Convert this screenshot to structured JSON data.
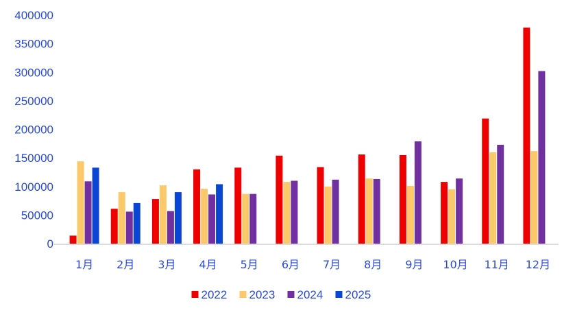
{
  "chart_data": {
    "type": "bar",
    "title": "",
    "xlabel": "",
    "ylabel": "",
    "ylim": [
      0,
      400000
    ],
    "yticks": [
      0,
      50000,
      100000,
      150000,
      200000,
      250000,
      300000,
      350000,
      400000
    ],
    "grid": false,
    "legend_position": "bottom",
    "categories": [
      "1月",
      "2月",
      "3月",
      "4月",
      "5月",
      "6月",
      "7月",
      "8月",
      "9月",
      "10月",
      "11月",
      "12月"
    ],
    "series": [
      {
        "name": "2022",
        "color": "#ee0000",
        "values": [
          14000,
          61000,
          78000,
          130000,
          133000,
          154000,
          134000,
          156000,
          155000,
          108000,
          219000,
          378000
        ]
      },
      {
        "name": "2023",
        "color": "#fcc96a",
        "values": [
          144000,
          90000,
          102000,
          96000,
          87000,
          108000,
          100000,
          114000,
          101000,
          95000,
          160000,
          162000
        ]
      },
      {
        "name": "2024",
        "color": "#7030a0",
        "values": [
          109000,
          56000,
          57000,
          86000,
          87000,
          110000,
          112000,
          113000,
          179000,
          114000,
          173000,
          302000
        ]
      },
      {
        "name": "2025",
        "color": "#0a46d4",
        "values": [
          133000,
          71000,
          90000,
          104000,
          null,
          null,
          null,
          null,
          null,
          null,
          null,
          null
        ]
      }
    ]
  }
}
